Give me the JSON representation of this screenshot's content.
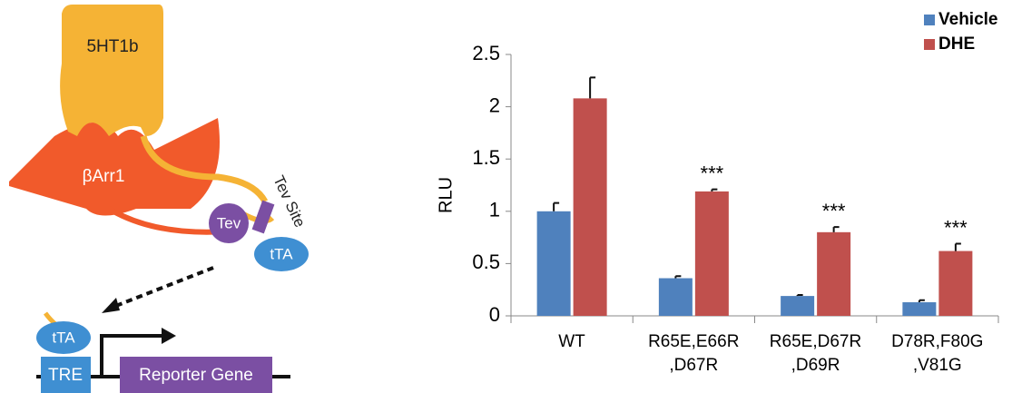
{
  "diagram": {
    "receptor": "5HT1b",
    "arrestin": "βArr1",
    "protease": "Tev",
    "site": "Tev Site",
    "factor": "tTA",
    "factor_bound": "tTA",
    "element": "TRE",
    "reporter": "Reporter Gene"
  },
  "chart_data": {
    "type": "bar",
    "y_label": "RLU",
    "categories": [
      "WT",
      "R65E,E66R\n,D67R",
      "R65E,D67R\n,D69R",
      "D78R,F80G\n,V81G"
    ],
    "series": [
      {
        "name": "Vehicle",
        "color": "#4f81bd",
        "values": [
          1.0,
          0.36,
          0.19,
          0.13
        ],
        "errors": [
          0.08,
          0.02,
          0.01,
          0.02
        ]
      },
      {
        "name": "DHE",
        "color": "#c0504d",
        "values": [
          2.08,
          1.19,
          0.8,
          0.62
        ],
        "errors": [
          0.2,
          0.02,
          0.05,
          0.07
        ],
        "significance": [
          null,
          "***",
          "***",
          "***"
        ]
      }
    ],
    "ylim": [
      0,
      2.5
    ],
    "yticks": [
      0,
      0.5,
      1,
      {
        "value": 1.5,
        "label": "1.5"
      },
      2,
      2.5
    ],
    "legend": "top-right"
  }
}
